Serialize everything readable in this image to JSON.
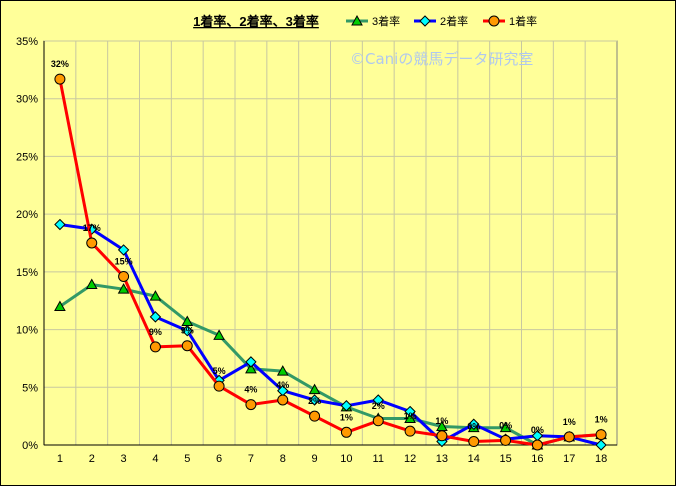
{
  "chart_data": {
    "type": "line",
    "title": "1着率、2着率、3着率",
    "watermark": "©Caniの競馬データ研究室",
    "x": [
      1,
      2,
      3,
      4,
      5,
      6,
      7,
      8,
      9,
      10,
      11,
      12,
      13,
      14,
      15,
      16,
      17,
      18
    ],
    "y_ticks": [
      "0%",
      "5%",
      "10%",
      "15%",
      "20%",
      "25%",
      "30%",
      "35%"
    ],
    "ylim": [
      0,
      35
    ],
    "grid": true,
    "legend_position": "top",
    "series": [
      {
        "name": "3着率",
        "color": "#339966",
        "marker": "triangle",
        "marker_fill": "#00cc00",
        "values": [
          12.0,
          13.9,
          13.5,
          12.9,
          10.7,
          9.5,
          6.6,
          6.4,
          4.8,
          3.3,
          2.3,
          2.3,
          1.6,
          1.5,
          1.5,
          0.0,
          0.7,
          0.9
        ]
      },
      {
        "name": "2着率",
        "color": "#0000ff",
        "marker": "diamond",
        "marker_fill": "#00ffff",
        "values": [
          19.1,
          18.7,
          16.9,
          11.1,
          9.9,
          5.6,
          7.2,
          4.7,
          3.9,
          3.4,
          3.9,
          2.9,
          0.3,
          1.8,
          0.5,
          0.8,
          0.7,
          0.0
        ]
      },
      {
        "name": "1着率",
        "color": "#ff0000",
        "marker": "circle",
        "marker_fill": "#ff9900",
        "values": [
          31.7,
          17.5,
          14.6,
          8.5,
          8.6,
          5.1,
          3.5,
          3.9,
          2.5,
          1.1,
          2.1,
          1.2,
          0.8,
          0.3,
          0.4,
          0.0,
          0.7,
          0.9
        ],
        "labels": [
          "32%",
          "17%",
          "15%",
          "9%",
          "9%",
          "5%",
          "4%",
          "4%",
          "2%",
          "1%",
          "2%",
          "1%",
          "1%",
          "0%",
          "0%",
          "0%",
          "1%",
          "1%"
        ]
      }
    ]
  }
}
